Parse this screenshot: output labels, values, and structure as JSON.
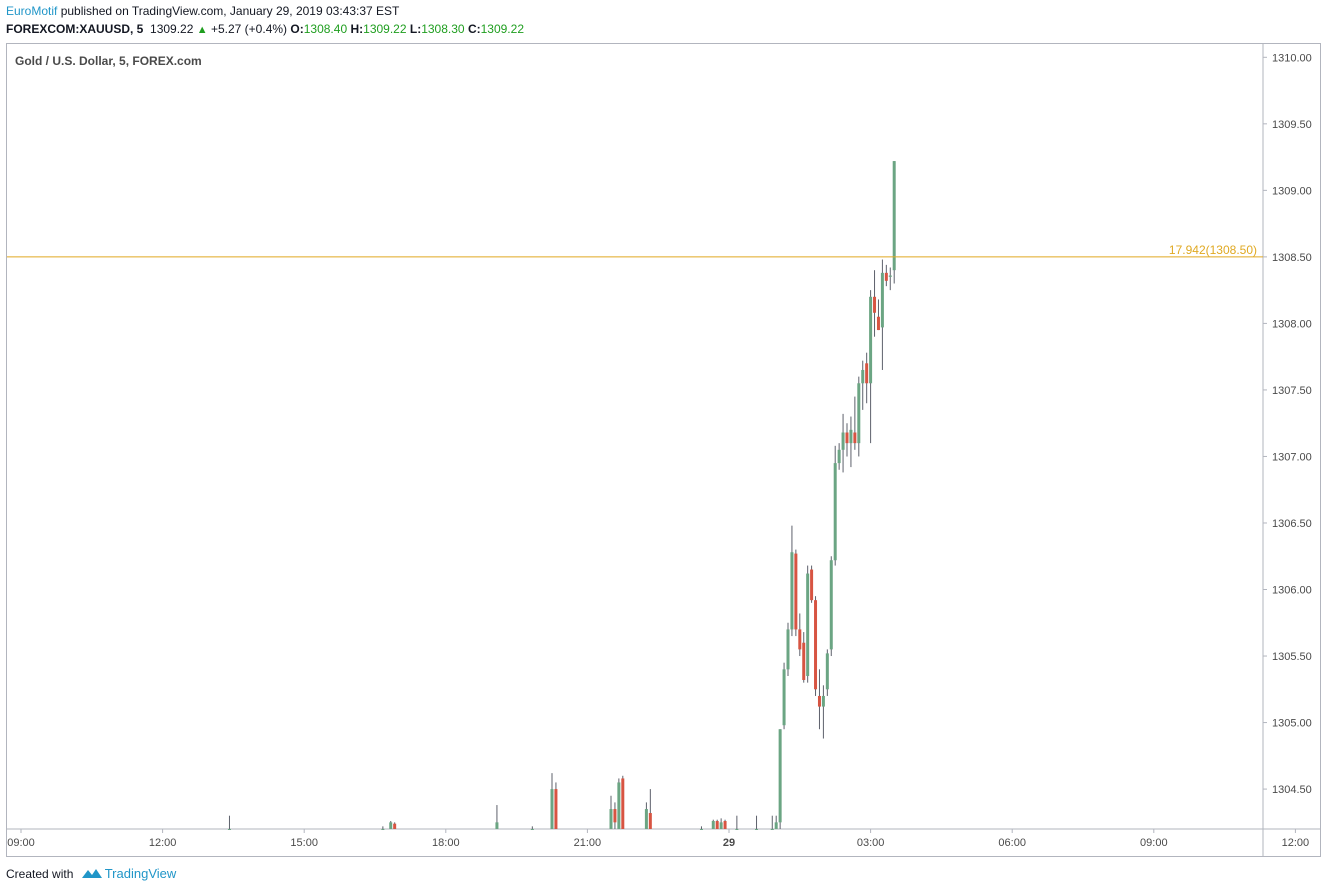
{
  "header": {
    "author": "EuroMotif",
    "published_text": "published on TradingView.com, January 29, 2019 03:43:37 EST",
    "symbol": "FOREXCOM:XAUUSD, 5",
    "last_price": "1309.22",
    "change": "+5.27 (+0.4%)",
    "open_label": "O:",
    "open": "1308.40",
    "high_label": "H:",
    "high": "1309.22",
    "low_label": "L:",
    "low": "1308.30",
    "close_label": "C:",
    "close": "1309.22"
  },
  "footer": {
    "created_with": "Created with",
    "brand": "TradingView"
  },
  "colors": {
    "up": "#6ba583",
    "down": "#d75442",
    "wick": "#5d606b",
    "hline": "#e0a922",
    "link": "#2196c8"
  },
  "chart_data": {
    "type": "candlestick",
    "title": "Gold / U.S. Dollar, 5, FOREX.com",
    "timeframe_minutes": 5,
    "ylim": [
      1304.2,
      1310.1
    ],
    "y_ticks": [
      "1310.00",
      "1309.50",
      "1309.00",
      "1308.50",
      "1308.00",
      "1307.50",
      "1307.00",
      "1306.50",
      "1306.00",
      "1305.50",
      "1305.00",
      "1304.50"
    ],
    "x_ticks": [
      {
        "t": "09:00",
        "label": "09:00",
        "bold": false
      },
      {
        "t": "12:00",
        "label": "12:00",
        "bold": false
      },
      {
        "t": "15:00",
        "label": "15:00",
        "bold": false
      },
      {
        "t": "18:00",
        "label": "18:00",
        "bold": false
      },
      {
        "t": "21:00",
        "label": "21:00",
        "bold": false
      },
      {
        "t": "29 00:00",
        "label": "29",
        "bold": true
      },
      {
        "t": "29 03:00",
        "label": "03:00",
        "bold": false
      },
      {
        "t": "29 06:00",
        "label": "06:00",
        "bold": false
      },
      {
        "t": "29 09:00",
        "label": "09:00",
        "bold": false
      },
      {
        "t": "29 12:00",
        "label": "12:00",
        "bold": false
      }
    ],
    "horizontal_line": {
      "price": 1308.5,
      "label": "17.942(1308.50)"
    },
    "candles": [
      {
        "t": "13:25",
        "o": 1304.2,
        "h": 1304.3,
        "l": 1304.2,
        "c": 1304.2
      },
      {
        "t": "16:40",
        "o": 1304.2,
        "h": 1304.22,
        "l": 1304.2,
        "c": 1304.2
      },
      {
        "t": "16:50",
        "o": 1304.2,
        "h": 1304.26,
        "l": 1304.2,
        "c": 1304.25
      },
      {
        "t": "16:55",
        "o": 1304.24,
        "h": 1304.25,
        "l": 1304.2,
        "c": 1304.2
      },
      {
        "t": "19:05",
        "o": 1304.2,
        "h": 1304.38,
        "l": 1304.2,
        "c": 1304.25
      },
      {
        "t": "19:50",
        "o": 1304.2,
        "h": 1304.22,
        "l": 1304.2,
        "c": 1304.2
      },
      {
        "t": "20:15",
        "o": 1304.2,
        "h": 1304.62,
        "l": 1304.2,
        "c": 1304.5
      },
      {
        "t": "20:20",
        "o": 1304.5,
        "h": 1304.55,
        "l": 1304.2,
        "c": 1304.2
      },
      {
        "t": "21:30",
        "o": 1304.2,
        "h": 1304.45,
        "l": 1304.2,
        "c": 1304.35
      },
      {
        "t": "21:35",
        "o": 1304.35,
        "h": 1304.4,
        "l": 1304.2,
        "c": 1304.25
      },
      {
        "t": "21:40",
        "o": 1304.2,
        "h": 1304.58,
        "l": 1304.2,
        "c": 1304.55
      },
      {
        "t": "21:45",
        "o": 1304.58,
        "h": 1304.6,
        "l": 1304.2,
        "c": 1304.2
      },
      {
        "t": "22:15",
        "o": 1304.2,
        "h": 1304.4,
        "l": 1304.2,
        "c": 1304.35
      },
      {
        "t": "22:20",
        "o": 1304.32,
        "h": 1304.5,
        "l": 1304.2,
        "c": 1304.2
      },
      {
        "t": "23:25",
        "o": 1304.2,
        "h": 1304.22,
        "l": 1304.2,
        "c": 1304.2
      },
      {
        "t": "23:40",
        "o": 1304.2,
        "h": 1304.27,
        "l": 1304.2,
        "c": 1304.26
      },
      {
        "t": "23:45",
        "o": 1304.26,
        "h": 1304.27,
        "l": 1304.2,
        "c": 1304.2
      },
      {
        "t": "23:50",
        "o": 1304.2,
        "h": 1304.28,
        "l": 1304.2,
        "c": 1304.25
      },
      {
        "t": "23:55",
        "o": 1304.26,
        "h": 1304.27,
        "l": 1304.2,
        "c": 1304.2
      },
      {
        "t": "29 00:10",
        "o": 1304.2,
        "h": 1304.3,
        "l": 1304.2,
        "c": 1304.2
      },
      {
        "t": "29 00:35",
        "o": 1304.2,
        "h": 1304.3,
        "l": 1304.2,
        "c": 1304.2
      },
      {
        "t": "29 00:55",
        "o": 1304.2,
        "h": 1304.3,
        "l": 1304.2,
        "c": 1304.2
      },
      {
        "t": "29 01:00",
        "o": 1304.2,
        "h": 1304.3,
        "l": 1304.2,
        "c": 1304.25
      },
      {
        "t": "29 01:05",
        "o": 1304.25,
        "h": 1304.95,
        "l": 1304.2,
        "c": 1304.95
      },
      {
        "t": "29 01:10",
        "o": 1304.98,
        "h": 1305.45,
        "l": 1304.95,
        "c": 1305.4
      },
      {
        "t": "29 01:15",
        "o": 1305.4,
        "h": 1305.75,
        "l": 1305.35,
        "c": 1305.7
      },
      {
        "t": "29 01:20",
        "o": 1305.7,
        "h": 1306.48,
        "l": 1305.65,
        "c": 1306.28
      },
      {
        "t": "29 01:25",
        "o": 1306.27,
        "h": 1306.3,
        "l": 1305.65,
        "c": 1305.7
      },
      {
        "t": "29 01:30",
        "o": 1305.7,
        "h": 1305.82,
        "l": 1305.5,
        "c": 1305.55
      },
      {
        "t": "29 01:35",
        "o": 1305.6,
        "h": 1305.68,
        "l": 1305.3,
        "c": 1305.32
      },
      {
        "t": "29 01:40",
        "o": 1305.35,
        "h": 1306.18,
        "l": 1305.3,
        "c": 1306.12
      },
      {
        "t": "29 01:45",
        "o": 1306.15,
        "h": 1306.18,
        "l": 1305.9,
        "c": 1305.92
      },
      {
        "t": "29 01:50",
        "o": 1305.92,
        "h": 1305.95,
        "l": 1305.2,
        "c": 1305.25
      },
      {
        "t": "29 01:55",
        "o": 1305.2,
        "h": 1305.4,
        "l": 1304.95,
        "c": 1305.12
      },
      {
        "t": "29 02:00",
        "o": 1305.12,
        "h": 1305.28,
        "l": 1304.88,
        "c": 1305.2
      },
      {
        "t": "29 02:05",
        "o": 1305.25,
        "h": 1305.55,
        "l": 1305.2,
        "c": 1305.52
      },
      {
        "t": "29 02:10",
        "o": 1305.55,
        "h": 1306.25,
        "l": 1305.5,
        "c": 1306.22
      },
      {
        "t": "29 02:15",
        "o": 1306.22,
        "h": 1307.08,
        "l": 1306.18,
        "c": 1306.95
      },
      {
        "t": "29 02:20",
        "o": 1306.95,
        "h": 1307.1,
        "l": 1306.9,
        "c": 1307.05
      },
      {
        "t": "29 02:25",
        "o": 1307.05,
        "h": 1307.32,
        "l": 1306.88,
        "c": 1307.18
      },
      {
        "t": "29 02:30",
        "o": 1307.18,
        "h": 1307.25,
        "l": 1307.0,
        "c": 1307.1
      },
      {
        "t": "29 02:35",
        "o": 1307.1,
        "h": 1307.3,
        "l": 1306.92,
        "c": 1307.2
      },
      {
        "t": "29 02:40",
        "o": 1307.18,
        "h": 1307.45,
        "l": 1307.05,
        "c": 1307.1
      },
      {
        "t": "29 02:45",
        "o": 1307.1,
        "h": 1307.6,
        "l": 1307.0,
        "c": 1307.55
      },
      {
        "t": "29 02:50",
        "o": 1307.55,
        "h": 1307.72,
        "l": 1307.35,
        "c": 1307.65
      },
      {
        "t": "29 02:55",
        "o": 1307.7,
        "h": 1307.78,
        "l": 1307.4,
        "c": 1307.55
      },
      {
        "t": "29 03:00",
        "o": 1307.55,
        "h": 1308.25,
        "l": 1307.1,
        "c": 1308.2
      },
      {
        "t": "29 03:05",
        "o": 1308.2,
        "h": 1308.4,
        "l": 1307.9,
        "c": 1308.08
      },
      {
        "t": "29 03:10",
        "o": 1308.05,
        "h": 1308.18,
        "l": 1307.95,
        "c": 1307.95
      },
      {
        "t": "29 03:15",
        "o": 1307.97,
        "h": 1308.48,
        "l": 1307.65,
        "c": 1308.38
      },
      {
        "t": "29 03:20",
        "o": 1308.38,
        "h": 1308.44,
        "l": 1308.28,
        "c": 1308.32
      },
      {
        "t": "29 03:25",
        "o": 1308.35,
        "h": 1308.42,
        "l": 1308.25,
        "c": 1308.36
      },
      {
        "t": "29 03:30",
        "o": 1308.4,
        "h": 1309.22,
        "l": 1308.3,
        "c": 1309.22
      }
    ]
  }
}
